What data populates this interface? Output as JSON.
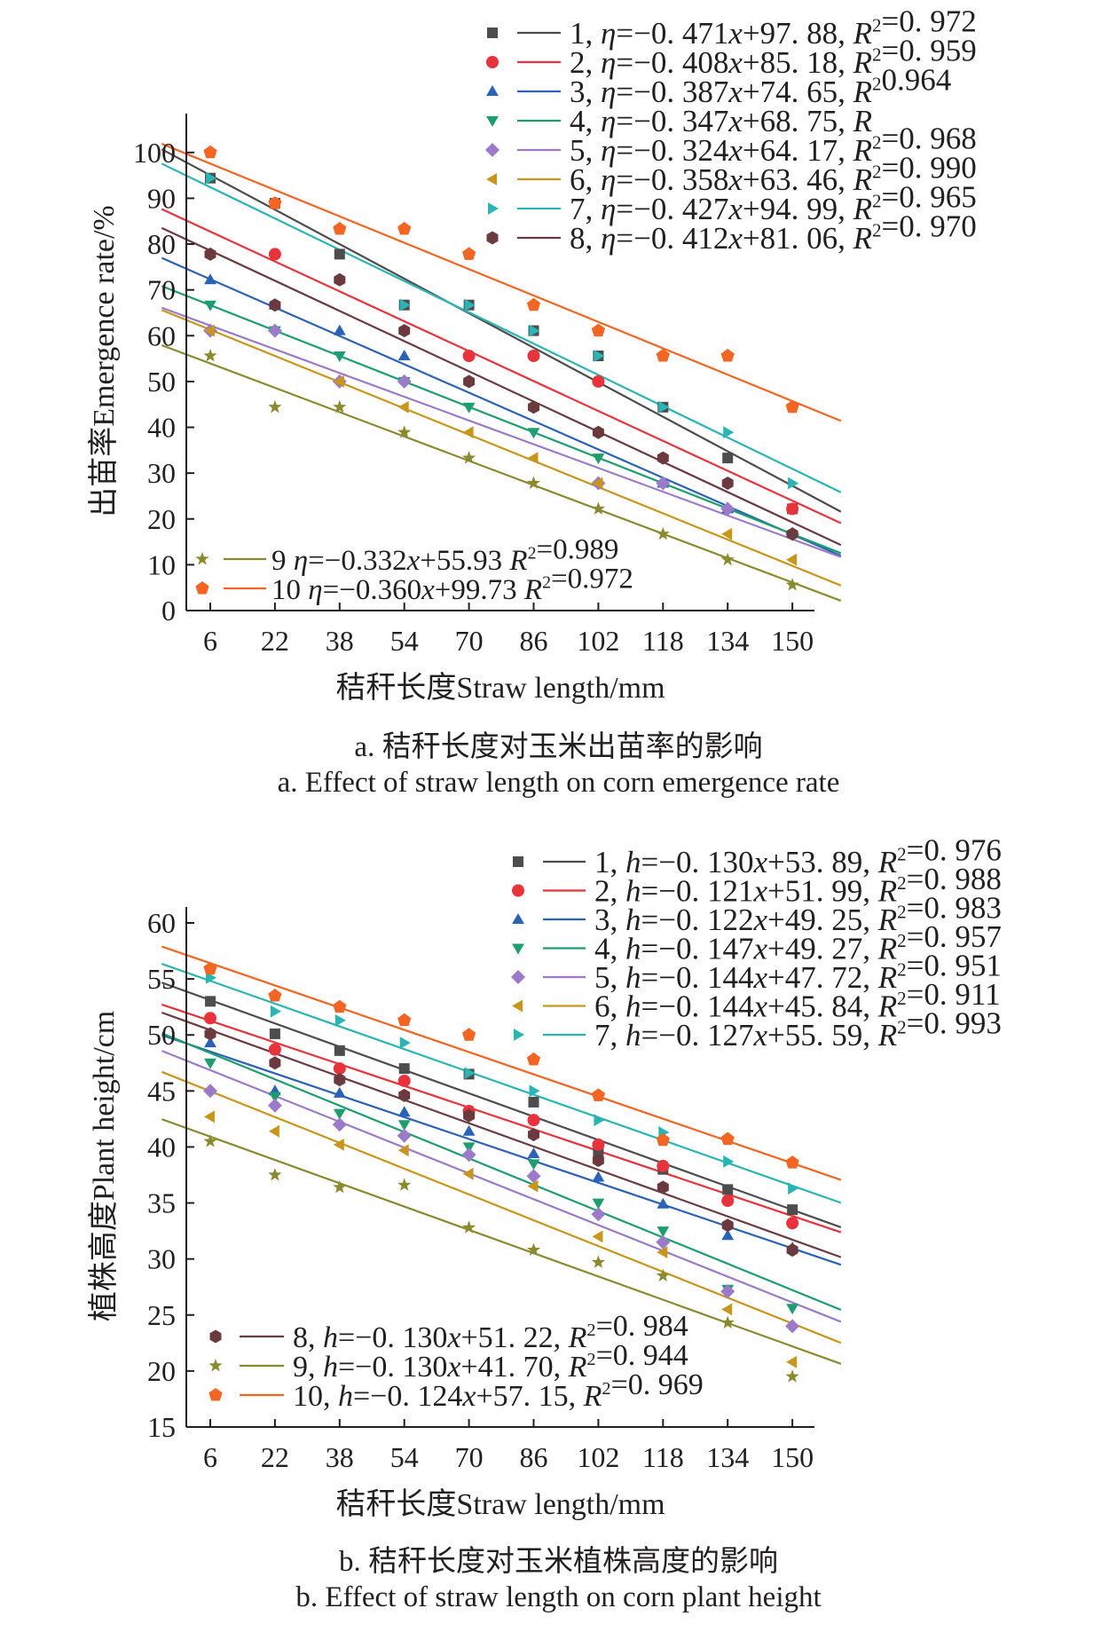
{
  "chart_data": [
    {
      "type": "scatter",
      "xlabel": "秸秆长度Straw length/mm",
      "ylabel": "出苗率Emergence rate/%",
      "x": [
        6,
        22,
        38,
        54,
        70,
        86,
        102,
        118,
        134,
        150
      ],
      "x_ticks": [
        "6",
        "22",
        "38",
        "54",
        "70",
        "86",
        "102",
        "118",
        "134",
        "150"
      ],
      "ylim": [
        0,
        105
      ],
      "y_ticks": [
        0,
        10,
        20,
        30,
        40,
        50,
        60,
        70,
        80,
        90,
        100
      ],
      "caption_cn": "a. 秸秆长度对玉米出苗率的影响",
      "caption_en": "a. Effect of straw length on corn emergence rate",
      "series": [
        {
          "name": "1",
          "marker": "square",
          "color": "#4d4d4d",
          "slope": -0.471,
          "intercept": 97.88,
          "legend": "1, η=−0. 471x+97. 88, R²=0. 972",
          "values": [
            94.4,
            88.9,
            77.8,
            66.7,
            66.7,
            61.1,
            55.6,
            44.4,
            33.3,
            22.2
          ]
        },
        {
          "name": "2",
          "marker": "circle",
          "color": "#e8333c",
          "slope": -0.408,
          "intercept": 85.18,
          "legend": "2, η=−0. 408x+85. 18, R²=0. 959",
          "values": [
            null,
            77.8,
            null,
            null,
            55.6,
            55.6,
            50.0,
            null,
            null,
            22.2
          ]
        },
        {
          "name": "3",
          "marker": "triangle-up",
          "color": "#2a62b8",
          "slope": -0.387,
          "intercept": 74.65,
          "legend": "3, η=−0. 387x+74. 65, R²0.964",
          "values": [
            72.2,
            66.7,
            61.1,
            55.6,
            null,
            null,
            null,
            27.8,
            22.2,
            null
          ]
        },
        {
          "name": "4",
          "marker": "triangle-down",
          "color": "#1d9e6e",
          "slope": -0.347,
          "intercept": 68.75,
          "legend": "4, η=−0. 347x+68. 75, R",
          "values": [
            66.7,
            61.1,
            55.6,
            50.0,
            44.4,
            38.9,
            33.3,
            null,
            null,
            null
          ]
        },
        {
          "name": "5",
          "marker": "diamond",
          "color": "#9b7bc9",
          "slope": -0.324,
          "intercept": 64.17,
          "legend": "5, η=−0. 324x+64. 17, R²=0. 968",
          "values": [
            61.1,
            61.1,
            50.0,
            50.0,
            null,
            null,
            27.8,
            27.8,
            22.2,
            16.7
          ]
        },
        {
          "name": "6",
          "marker": "triangle-left",
          "color": "#c9961b",
          "slope": -0.358,
          "intercept": 63.46,
          "legend": "6, η=−0. 358x+63. 46, R²=0. 990",
          "values": [
            61.1,
            null,
            50.0,
            44.4,
            38.9,
            33.3,
            27.8,
            null,
            16.7,
            11.1
          ]
        },
        {
          "name": "7",
          "marker": "triangle-right",
          "color": "#2ab5b5",
          "slope": -0.427,
          "intercept": 94.99,
          "legend": "7, η=−0. 427x+94. 99, R²=0. 965",
          "values": [
            94.4,
            null,
            null,
            66.7,
            66.7,
            61.1,
            55.6,
            44.4,
            38.9,
            27.8
          ]
        },
        {
          "name": "8",
          "marker": "hexagon",
          "color": "#6b3a3f",
          "slope": -0.412,
          "intercept": 81.06,
          "legend": "8, η=−0. 412x+81. 06, R²=0. 970",
          "values": [
            77.8,
            66.7,
            72.2,
            61.1,
            50.0,
            44.4,
            38.9,
            33.3,
            27.8,
            16.7
          ]
        },
        {
          "name": "9",
          "marker": "star",
          "color": "#8a8a2e",
          "slope": -0.332,
          "intercept": 55.93,
          "legend": "9  η=−0.332x+55.93 R²=0.989",
          "values": [
            55.6,
            44.4,
            44.4,
            38.9,
            33.3,
            27.8,
            22.2,
            16.7,
            11.1,
            5.6
          ]
        },
        {
          "name": "10",
          "marker": "pentagon",
          "color": "#f26522",
          "slope": -0.36,
          "intercept": 99.73,
          "legend": "10 η=−0.360x+99.73 R²=0.972",
          "values": [
            100,
            88.9,
            83.3,
            83.3,
            77.8,
            66.7,
            61.1,
            55.6,
            55.6,
            44.4
          ]
        }
      ]
    },
    {
      "type": "scatter",
      "xlabel": "秸秆长度Straw length/mm",
      "ylabel": "植株高度Plant height/cm",
      "x": [
        6,
        22,
        38,
        54,
        70,
        86,
        102,
        118,
        134,
        150
      ],
      "x_ticks": [
        "6",
        "22",
        "38",
        "54",
        "70",
        "86",
        "102",
        "118",
        "134",
        "150"
      ],
      "ylim": [
        15,
        60
      ],
      "y_ticks": [
        15,
        20,
        25,
        30,
        35,
        40,
        45,
        50,
        55,
        60
      ],
      "caption_cn": "b. 秸秆长度对玉米植株高度的影响",
      "caption_en": "b. Effect of straw length on corn plant height",
      "series": [
        {
          "name": "1",
          "marker": "square",
          "color": "#4d4d4d",
          "slope": -0.13,
          "intercept": 53.89,
          "legend": "1, h=−0. 130x+53. 89, R²=0. 976",
          "values": [
            53.0,
            50.1,
            48.6,
            47.0,
            46.5,
            44.0,
            39.5,
            38.0,
            36.2,
            34.4
          ]
        },
        {
          "name": "2",
          "marker": "circle",
          "color": "#e8333c",
          "slope": -0.121,
          "intercept": 51.99,
          "legend": "2, h=−0. 121x+51. 99, R²=0. 988",
          "values": [
            51.5,
            48.7,
            47.0,
            45.9,
            43.2,
            42.4,
            40.2,
            38.3,
            35.2,
            33.2
          ]
        },
        {
          "name": "3",
          "marker": "triangle-up",
          "color": "#2a62b8",
          "slope": -0.122,
          "intercept": 49.25,
          "legend": "3, h=−0. 122x+49. 25, R²=0. 983",
          "values": [
            49.3,
            45.0,
            44.8,
            43.1,
            41.4,
            39.4,
            37.3,
            34.9,
            32.1,
            31.0
          ]
        },
        {
          "name": "4",
          "marker": "triangle-down",
          "color": "#1d9e6e",
          "slope": -0.147,
          "intercept": 49.27,
          "legend": "4, h=−0. 147x+49. 27, R²=0. 957",
          "values": [
            47.5,
            44.5,
            43.0,
            42.0,
            40.0,
            38.5,
            35.0,
            32.5,
            27.3,
            25.6
          ]
        },
        {
          "name": "5",
          "marker": "diamond",
          "color": "#9b7bc9",
          "slope": -0.144,
          "intercept": 47.72,
          "legend": "5, h=−0. 144x+47. 72, R²=0. 951",
          "values": [
            45.0,
            43.7,
            42.0,
            41.0,
            39.3,
            37.4,
            34.0,
            31.5,
            27.1,
            24.0
          ]
        },
        {
          "name": "6",
          "marker": "triangle-left",
          "color": "#c9961b",
          "slope": -0.144,
          "intercept": 45.84,
          "legend": "6, h=−0. 144x+45. 84, R²=0. 911",
          "values": [
            42.7,
            41.4,
            40.2,
            39.7,
            37.6,
            36.5,
            32.0,
            30.6,
            25.5,
            20.8
          ]
        },
        {
          "name": "7",
          "marker": "triangle-right",
          "color": "#2ab5b5",
          "slope": -0.127,
          "intercept": 55.59,
          "legend": "7, h=−0. 127x+55. 59, R²=0. 993",
          "values": [
            55.1,
            52.1,
            51.3,
            49.3,
            46.6,
            45.0,
            42.4,
            41.3,
            38.7,
            36.3
          ]
        },
        {
          "name": "8",
          "marker": "hexagon",
          "color": "#6b3a3f",
          "slope": -0.13,
          "intercept": 51.22,
          "legend": "8, h=−0. 130x+51. 22, R²=0. 984",
          "values": [
            50.1,
            47.5,
            46.0,
            44.6,
            42.8,
            41.1,
            38.8,
            36.4,
            33.0,
            30.8
          ]
        },
        {
          "name": "9",
          "marker": "star",
          "color": "#8a8a2e",
          "slope": -0.13,
          "intercept": 41.7,
          "legend": "9, h=−0. 130x+41. 70, R²=0. 944",
          "values": [
            40.5,
            37.5,
            36.4,
            36.6,
            32.8,
            30.8,
            29.7,
            28.5,
            24.3,
            19.5
          ]
        },
        {
          "name": "10",
          "marker": "pentagon",
          "color": "#f26522",
          "slope": -0.124,
          "intercept": 57.15,
          "legend": "10, h=−0. 124x+57. 15, R²=0. 969",
          "values": [
            55.9,
            53.5,
            52.5,
            51.3,
            50.0,
            47.8,
            44.6,
            40.6,
            40.7,
            38.6
          ]
        }
      ]
    }
  ]
}
